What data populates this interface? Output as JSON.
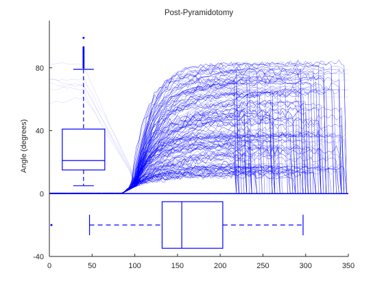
{
  "chart_data": {
    "type": "line",
    "title": "Post-Pyramidotomy",
    "xlabel": "",
    "ylabel": "Angle (degrees)",
    "xlim": [
      0,
      350
    ],
    "ylim": [
      -40,
      110
    ],
    "x_ticks": [
      0,
      50,
      100,
      150,
      200,
      250,
      300,
      350
    ],
    "y_ticks": [
      -40,
      0,
      40,
      80
    ],
    "grid": false,
    "legend": "none",
    "trace_color": "#0000ff",
    "trace_description": "Hundreds of overlaid angle traces: near 0 until x≈90, converge to ≈5 at x≈100, then diverge and rise toward 20–85 degrees by x≈250–300, many dropping back to 0 afterwards.",
    "boxplot_y": {
      "orientation": "vertical",
      "x_position": 40,
      "whisker_low": 5,
      "q1": 15,
      "median": 21,
      "q3": 41,
      "whisker_high": 79,
      "outliers": [
        80,
        81,
        82,
        83,
        84,
        85,
        86,
        87,
        88,
        89,
        90,
        91,
        92,
        93,
        99
      ]
    },
    "boxplot_x": {
      "orientation": "horizontal",
      "y_position": -20,
      "whisker_low": 47,
      "q1": 132,
      "median": 155,
      "q3": 203,
      "whisker_high": 297,
      "outliers": [
        0
      ]
    }
  }
}
